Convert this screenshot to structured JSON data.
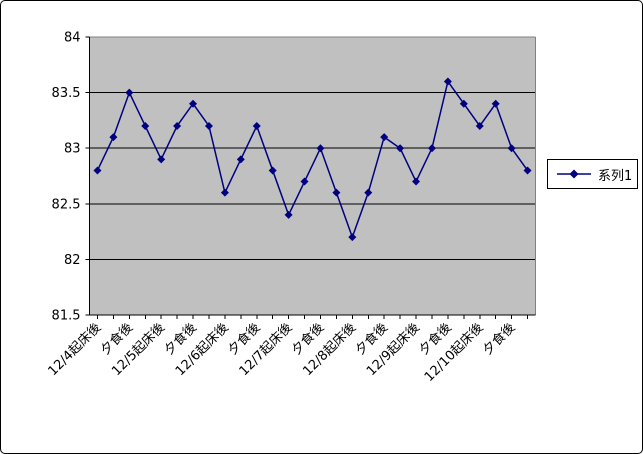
{
  "window": {
    "background_color": "#ffffff",
    "border_color": "#000000"
  },
  "chart_data": {
    "type": "line",
    "title": "",
    "xlabel": "",
    "ylabel": "",
    "plot_bg_color": "#c0c0c0",
    "gridline_color": "#000000",
    "axis_color": "#000000",
    "plot_border_color": "#808080",
    "grid": true,
    "legend_position": "right",
    "points_per_label": 2,
    "categories": [
      "12/4起床後",
      "夕食後",
      "12/5起床後",
      "夕食後",
      "12/6起床後",
      "夕食後",
      "12/7起床後",
      "夕食後",
      "12/8起床後",
      "夕食後",
      "12/9起床後",
      "夕食後",
      "12/10起床後",
      "夕食後"
    ],
    "series": [
      {
        "name": "系列1",
        "color": "#000080",
        "marker": "diamond",
        "values": [
          82.8,
          83.1,
          83.5,
          83.2,
          82.9,
          83.2,
          83.4,
          83.2,
          82.6,
          82.9,
          83.2,
          82.8,
          82.4,
          82.7,
          83.0,
          82.6,
          82.2,
          82.6,
          83.1,
          83.0,
          82.7,
          83.0,
          83.6,
          83.4,
          83.2,
          83.4,
          83.0,
          82.8
        ]
      }
    ],
    "y_axis": {
      "min": 81.5,
      "max": 84,
      "major_unit": 0.5,
      "tick_labels": [
        "84",
        "83.5",
        "83",
        "82.5",
        "82",
        "81.5"
      ]
    }
  },
  "legend": {
    "series_label": "系列1"
  }
}
